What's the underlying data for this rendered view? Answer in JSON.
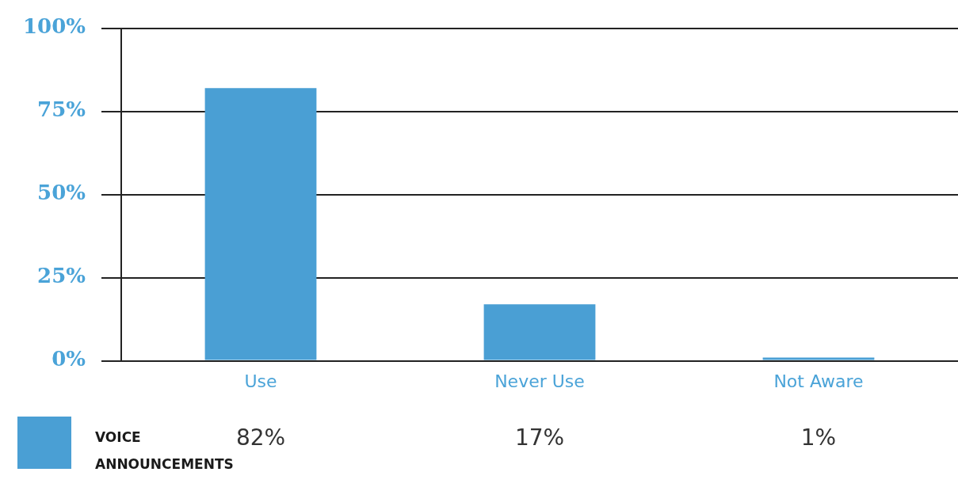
{
  "chart_data": {
    "type": "bar",
    "categories": [
      "Use",
      "Never Use",
      "Not Aware"
    ],
    "series": [
      {
        "name": "VOICE ANNOUNCEMENTS",
        "color": "#4a9fd4",
        "values": [
          82,
          17,
          1
        ],
        "value_labels": [
          "82%",
          "17%",
          "1%"
        ]
      }
    ],
    "ylim": [
      0,
      100
    ],
    "yticks": [
      {
        "value": 0,
        "label": "0%"
      },
      {
        "value": 25,
        "label": "25%"
      },
      {
        "value": 50,
        "label": "50%"
      },
      {
        "value": 75,
        "label": "75%"
      },
      {
        "value": 100,
        "label": "100%"
      }
    ],
    "grid": "y",
    "legend": "bottom left"
  }
}
